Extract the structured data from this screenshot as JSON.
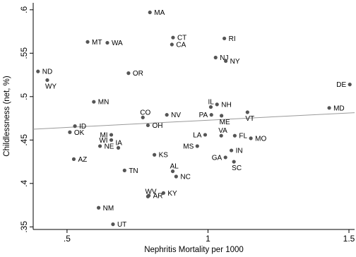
{
  "chart_data": {
    "type": "scatter",
    "title": "",
    "xlabel": "Nephritis Mortality per 1000",
    "ylabel": "Childlessness (net, %)",
    "xlim": [
      0.38,
      1.52
    ],
    "ylim": [
      0.347,
      0.608
    ],
    "x_ticks": [
      0.5,
      1,
      1.5
    ],
    "x_tick_labels": [
      ".5",
      "1",
      "1.5"
    ],
    "y_ticks": [
      0.35,
      0.4,
      0.45,
      0.5,
      0.55,
      0.6
    ],
    "y_tick_labels": [
      ".35",
      ".4",
      ".45",
      ".5",
      ".55",
      ".6"
    ],
    "grid": false,
    "colors": {
      "points": "#555555",
      "fit_line": "#9a9a9a",
      "axis": "#000000"
    },
    "fit_line": {
      "x": [
        0.38,
        1.52
      ],
      "y": [
        0.4625,
        0.4815
      ]
    },
    "points": [
      {
        "label": "MA",
        "x": 0.794,
        "y": 0.597,
        "pos": "right"
      },
      {
        "label": "CT",
        "x": 0.876,
        "y": 0.568,
        "pos": "right"
      },
      {
        "label": "RI",
        "x": 1.058,
        "y": 0.567,
        "pos": "right"
      },
      {
        "label": "MT",
        "x": 0.573,
        "y": 0.563,
        "pos": "right"
      },
      {
        "label": "WA",
        "x": 0.643,
        "y": 0.562,
        "pos": "right"
      },
      {
        "label": "CA",
        "x": 0.872,
        "y": 0.56,
        "pos": "right"
      },
      {
        "label": "NJ",
        "x": 1.027,
        "y": 0.545,
        "pos": "right"
      },
      {
        "label": "NY",
        "x": 1.063,
        "y": 0.541,
        "pos": "right"
      },
      {
        "label": "ND",
        "x": 0.397,
        "y": 0.529,
        "pos": "right"
      },
      {
        "label": "OR",
        "x": 0.718,
        "y": 0.527,
        "pos": "right"
      },
      {
        "label": "WY",
        "x": 0.43,
        "y": 0.519,
        "pos": "below"
      },
      {
        "label": "DE",
        "x": 1.503,
        "y": 0.514,
        "pos": "left"
      },
      {
        "label": "MN",
        "x": 0.595,
        "y": 0.494,
        "pos": "right"
      },
      {
        "label": "IL",
        "x": 1.01,
        "y": 0.488,
        "pos": "above"
      },
      {
        "label": "NH",
        "x": 1.032,
        "y": 0.491,
        "pos": "right"
      },
      {
        "label": "MD",
        "x": 1.43,
        "y": 0.487,
        "pos": "right"
      },
      {
        "label": "CO",
        "x": 0.769,
        "y": 0.476,
        "pos": "above"
      },
      {
        "label": "PA",
        "x": 1.012,
        "y": 0.479,
        "pos": "left"
      },
      {
        "label": "NV",
        "x": 0.854,
        "y": 0.479,
        "pos": "right"
      },
      {
        "label": "VT",
        "x": 1.14,
        "y": 0.482,
        "pos": "below"
      },
      {
        "label": "ME",
        "x": 1.048,
        "y": 0.478,
        "pos": "below"
      },
      {
        "label": "OH",
        "x": 0.787,
        "y": 0.467,
        "pos": "right"
      },
      {
        "label": "ID",
        "x": 0.528,
        "y": 0.466,
        "pos": "right"
      },
      {
        "label": "OK",
        "x": 0.51,
        "y": 0.459,
        "pos": "right"
      },
      {
        "label": "LA",
        "x": 0.99,
        "y": 0.456,
        "pos": "left"
      },
      {
        "label": "VA",
        "x": 1.047,
        "y": 0.455,
        "pos": "above"
      },
      {
        "label": "FL",
        "x": 1.095,
        "y": 0.455,
        "pos": "right"
      },
      {
        "label": "MO",
        "x": 1.152,
        "y": 0.452,
        "pos": "right"
      },
      {
        "label": "MI",
        "x": 0.657,
        "y": 0.456,
        "pos": "left"
      },
      {
        "label": "WI",
        "x": 0.657,
        "y": 0.45,
        "pos": "left"
      },
      {
        "label": "IA",
        "x": 0.682,
        "y": 0.441,
        "pos": "above"
      },
      {
        "label": "NE",
        "x": 0.617,
        "y": 0.443,
        "pos": "right"
      },
      {
        "label": "MS",
        "x": 0.962,
        "y": 0.443,
        "pos": "left"
      },
      {
        "label": "IN",
        "x": 1.083,
        "y": 0.438,
        "pos": "right"
      },
      {
        "label": "KS",
        "x": 0.81,
        "y": 0.433,
        "pos": "right"
      },
      {
        "label": "AZ",
        "x": 0.524,
        "y": 0.428,
        "pos": "right"
      },
      {
        "label": "GA",
        "x": 1.062,
        "y": 0.43,
        "pos": "left"
      },
      {
        "label": "SC",
        "x": 1.092,
        "y": 0.425,
        "pos": "below"
      },
      {
        "label": "AL",
        "x": 0.875,
        "y": 0.414,
        "pos": "above"
      },
      {
        "label": "TN",
        "x": 0.704,
        "y": 0.415,
        "pos": "right"
      },
      {
        "label": "NC",
        "x": 0.887,
        "y": 0.408,
        "pos": "right"
      },
      {
        "label": "WV",
        "x": 0.787,
        "y": 0.385,
        "pos": "above"
      },
      {
        "label": "AR",
        "x": 0.79,
        "y": 0.386,
        "pos": "right"
      },
      {
        "label": "KY",
        "x": 0.842,
        "y": 0.389,
        "pos": "right"
      },
      {
        "label": "NM",
        "x": 0.612,
        "y": 0.372,
        "pos": "right"
      },
      {
        "label": "UT",
        "x": 0.663,
        "y": 0.353,
        "pos": "right"
      }
    ]
  }
}
